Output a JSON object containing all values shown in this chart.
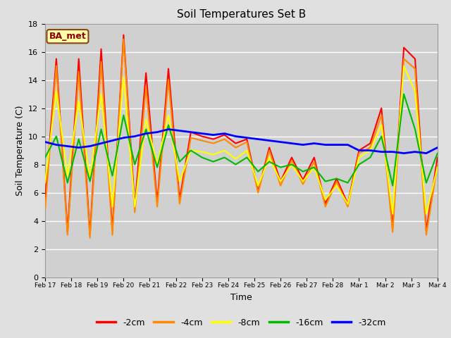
{
  "title": "Soil Temperatures Set B",
  "xlabel": "Time",
  "ylabel": "Soil Temperature (C)",
  "ylim": [
    0,
    18
  ],
  "yticks": [
    0,
    2,
    4,
    6,
    8,
    10,
    12,
    14,
    16,
    18
  ],
  "annotation": "BA_met",
  "legend_labels": [
    "-2cm",
    "-4cm",
    "-8cm",
    "-16cm",
    "-32cm"
  ],
  "legend_colors": [
    "#ff0000",
    "#ff8800",
    "#ffff00",
    "#00bb00",
    "#0000ff"
  ],
  "fig_bg": "#e0e0e0",
  "plot_bg": "#d0d0d0",
  "x_labels": [
    "Feb 17",
    "Feb 18",
    "Feb 19",
    "Feb 20",
    "Feb 21",
    "Feb 22",
    "Feb 23",
    "Feb 24",
    "Feb 25",
    "Feb 26",
    "Feb 27",
    "Feb 28",
    "Mar 1",
    "Mar 2",
    "Mar 3",
    "Mar 4"
  ],
  "series": {
    "depth_2cm": [
      5.5,
      15.5,
      3.2,
      15.5,
      3.0,
      16.2,
      3.3,
      17.2,
      5.0,
      14.5,
      5.3,
      14.8,
      5.5,
      10.3,
      10.0,
      9.8,
      10.1,
      9.5,
      9.8,
      6.1,
      9.2,
      6.8,
      8.5,
      6.9,
      8.5,
      5.2,
      7.0,
      5.2,
      9.0,
      9.5,
      12.0,
      3.5,
      16.3,
      15.5,
      3.3,
      8.5
    ],
    "depth_4cm": [
      4.8,
      15.0,
      3.0,
      14.6,
      2.8,
      15.3,
      3.0,
      16.9,
      4.6,
      13.5,
      5.0,
      14.0,
      5.2,
      9.9,
      9.7,
      9.5,
      9.8,
      9.2,
      9.6,
      6.0,
      9.0,
      6.5,
      8.3,
      6.6,
      8.2,
      5.0,
      6.8,
      5.0,
      8.8,
      9.2,
      11.5,
      3.2,
      15.5,
      14.8,
      3.0,
      8.0
    ],
    "depth_8cm": [
      6.7,
      13.2,
      7.2,
      12.5,
      7.0,
      13.0,
      5.0,
      14.2,
      5.0,
      11.2,
      8.0,
      11.5,
      6.8,
      9.0,
      8.9,
      8.7,
      9.0,
      8.4,
      9.0,
      6.5,
      8.5,
      6.8,
      8.0,
      6.8,
      7.8,
      5.5,
      6.5,
      5.2,
      8.5,
      9.0,
      10.8,
      4.5,
      15.0,
      13.2,
      4.5,
      7.8
    ],
    "depth_16cm": [
      8.5,
      10.0,
      6.7,
      9.8,
      6.8,
      10.5,
      7.2,
      11.5,
      8.0,
      10.5,
      7.8,
      10.8,
      8.2,
      9.0,
      8.5,
      8.2,
      8.5,
      8.0,
      8.5,
      7.5,
      8.2,
      7.8,
      8.0,
      7.5,
      7.8,
      6.8,
      7.0,
      6.7,
      8.0,
      8.5,
      10.0,
      6.5,
      13.0,
      10.5,
      6.7,
      8.8
    ],
    "depth_32cm": [
      9.6,
      9.4,
      9.3,
      9.2,
      9.3,
      9.5,
      9.7,
      9.9,
      10.0,
      10.2,
      10.3,
      10.5,
      10.4,
      10.3,
      10.2,
      10.1,
      10.2,
      10.0,
      9.9,
      9.8,
      9.7,
      9.6,
      9.5,
      9.4,
      9.5,
      9.4,
      9.4,
      9.4,
      9.0,
      9.0,
      8.9,
      8.9,
      8.8,
      8.9,
      8.8,
      9.2
    ]
  }
}
